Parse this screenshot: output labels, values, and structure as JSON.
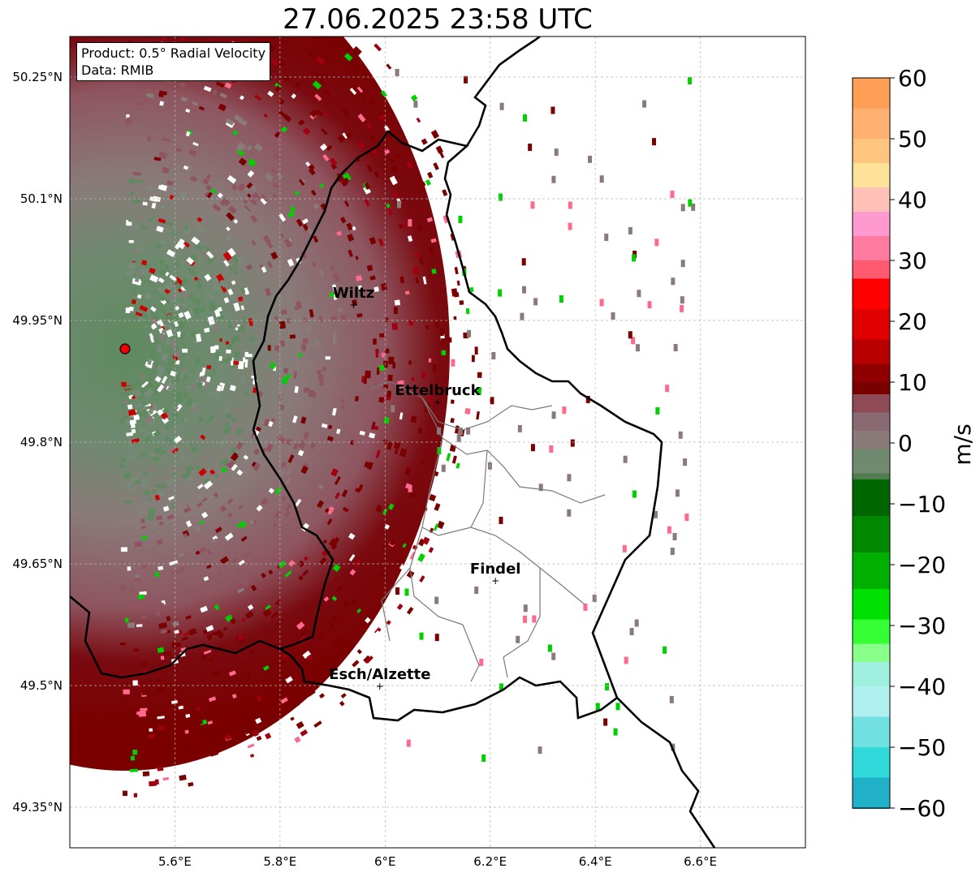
{
  "title": "27.06.2025 23:58 UTC",
  "infobox": {
    "product": "Product: 0.5° Radial Velocity",
    "data": "Data: RMIB"
  },
  "chart_data": {
    "type": "heatmap",
    "title": "27.06.2025 23:58 UTC",
    "x_ticks": [
      "5.6°E",
      "5.8°E",
      "6°E",
      "6.2°E",
      "6.4°E",
      "6.6°E"
    ],
    "x_tick_values": [
      5.6,
      5.8,
      6.0,
      6.2,
      6.4,
      6.6
    ],
    "y_ticks": [
      "50.25°N",
      "50.1°N",
      "49.95°N",
      "49.8°N",
      "49.65°N",
      "49.5°N",
      "49.35°N"
    ],
    "y_tick_values": [
      50.25,
      50.1,
      49.95,
      49.8,
      49.65,
      49.5,
      49.35
    ],
    "xlim": [
      5.4,
      6.8
    ],
    "ylim": [
      49.3,
      50.3
    ],
    "grid": true,
    "colorbar": {
      "label": "m/s",
      "ticks": [
        "60",
        "50",
        "40",
        "30",
        "20",
        "10",
        "0",
        "−10",
        "−20",
        "−30",
        "−40",
        "−50",
        "−60"
      ],
      "tick_values": [
        60,
        50,
        40,
        30,
        20,
        10,
        0,
        -10,
        -20,
        -30,
        -40,
        -50,
        -60
      ],
      "range": [
        -60,
        60
      ]
    },
    "radar_site": {
      "lon": 5.505,
      "lat": 49.915
    },
    "cities": [
      {
        "name": "Wiltz",
        "lon": 5.94,
        "lat": 49.97
      },
      {
        "name": "Ettelbruck",
        "lon": 6.1,
        "lat": 49.85
      },
      {
        "name": "Findel",
        "lon": 6.21,
        "lat": 49.63
      },
      {
        "name": "Esch/Alzette",
        "lon": 5.99,
        "lat": 49.5
      }
    ]
  },
  "colors": {
    "approaching_weak": "#5f8a5f",
    "neutral": "#8a7a7a",
    "receding_weak": "#8e5560",
    "receding_strong": "#7a0000",
    "green_strong": "#00d000",
    "pink": "#ff6a8c",
    "border": "#000000"
  }
}
